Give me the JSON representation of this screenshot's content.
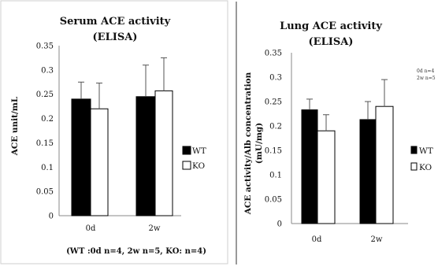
{
  "chart_data": [
    {
      "type": "bar",
      "title_lines": [
        "Serum ACE activity",
        "(ELISA)"
      ],
      "ylabel": "ACE unit/mL",
      "xlabel": "",
      "categories": [
        "0d",
        "2w"
      ],
      "ylim": [
        0,
        0.35
      ],
      "y_ticks": [
        "0",
        "0.05",
        "0.1",
        "0.15",
        "0.2",
        "0.25",
        "0.3",
        "0.35"
      ],
      "grid": false,
      "legend_position": "right",
      "series": [
        {
          "name": "WT",
          "color": "#000000",
          "values": [
            0.24,
            0.245
          ],
          "errors": [
            0.035,
            0.065
          ]
        },
        {
          "name": "KO",
          "color": "#ffffff",
          "values": [
            0.22,
            0.257
          ],
          "errors": [
            0.053,
            0.068
          ]
        }
      ],
      "footnote": "(WT :0d n=4, 2w n=5, KO: n=4)"
    },
    {
      "type": "bar",
      "title_lines": [
        "Lung ACE activity",
        "(ELISA)"
      ],
      "ylabel_lines": [
        "ACE activity/Alb concentration",
        "(mU/mg)"
      ],
      "xlabel": "",
      "categories": [
        "0d",
        "2w"
      ],
      "ylim": [
        0,
        0.35
      ],
      "y_ticks": [
        "0",
        "0.05",
        "0.1",
        "0.15",
        "0.2",
        "0.25",
        "0.3",
        "0.35"
      ],
      "grid": false,
      "legend_position": "right",
      "series": [
        {
          "name": "WT",
          "color": "#000000",
          "values": [
            0.233,
            0.213
          ],
          "errors": [
            0.022,
            0.037
          ]
        },
        {
          "name": "KO",
          "color": "#ffffff",
          "values": [
            0.19,
            0.24
          ],
          "errors": [
            0.033,
            0.055
          ]
        }
      ],
      "annotations": [
        "0d n=4",
        "2w n=5"
      ]
    }
  ]
}
